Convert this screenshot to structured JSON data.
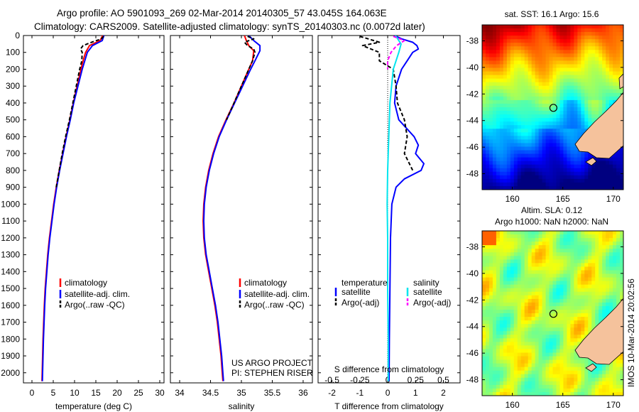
{
  "header": {
    "line1": "Argo profile: AO 5901093_269 02-Mar-2014 20140305_57 43.045S 164.063E",
    "line2": "Climatology: CARS2009. Satellite-adjusted climatology: synTS_20140303.nc (0.0072d later)"
  },
  "colors": {
    "climatology": "#ff0000",
    "satellite": "#0000ff",
    "argo": "#000000",
    "sat_salinity": "#00e5ee",
    "argo_salinity": "#ff00ff",
    "land": "#f5c29c"
  },
  "chart_data": [
    {
      "id": "temperature",
      "type": "line",
      "xlabel": "temperature (deg C)",
      "ylabel": "",
      "xlim": [
        -2,
        31
      ],
      "ylim": [
        2060,
        0
      ],
      "xticks": [
        0,
        5,
        10,
        15,
        20,
        25,
        30
      ],
      "yticks": [
        0,
        100,
        200,
        300,
        400,
        500,
        600,
        700,
        800,
        900,
        1000,
        1100,
        1200,
        1300,
        1400,
        1500,
        1600,
        1700,
        1800,
        1900,
        2000
      ],
      "legend": [
        "climatology",
        "satellite-adj. clim.",
        "Argo(..raw -QC)"
      ],
      "legend_position": "lower-middle",
      "series": [
        {
          "name": "climatology",
          "color": "#ff0000",
          "depth": [
            0,
            30,
            60,
            100,
            150,
            200,
            300,
            400,
            500,
            600,
            700,
            800,
            900,
            1000,
            1100,
            1200,
            1300,
            1400,
            1500,
            1600,
            1700,
            1800,
            1900,
            2000,
            2050
          ],
          "values": [
            16.6,
            16.0,
            13.5,
            12.6,
            12.0,
            11.5,
            10.6,
            9.7,
            8.9,
            8.0,
            7.2,
            6.4,
            5.7,
            5.1,
            4.6,
            4.1,
            3.7,
            3.4,
            3.1,
            2.9,
            2.75,
            2.6,
            2.5,
            2.4,
            2.35
          ]
        },
        {
          "name": "satellite-adj. clim.",
          "color": "#0000ff",
          "depth": [
            0,
            30,
            60,
            100,
            150,
            200,
            300,
            400,
            500,
            600,
            700,
            800,
            900,
            1000,
            1100,
            1200,
            1300,
            1400,
            1500,
            1600,
            1700,
            1800,
            1900,
            2000,
            2050
          ],
          "values": [
            16.9,
            16.5,
            14.2,
            13.0,
            12.4,
            11.8,
            10.8,
            9.8,
            9.0,
            8.1,
            7.3,
            6.5,
            5.8,
            5.2,
            4.7,
            4.2,
            3.8,
            3.5,
            3.2,
            3.0,
            2.85,
            2.7,
            2.6,
            2.5,
            2.45
          ]
        },
        {
          "name": "Argo(..raw -QC)",
          "color": "#000000",
          "depth": [
            5,
            20,
            40,
            60,
            80,
            100,
            150,
            200,
            300,
            400,
            500,
            600,
            700,
            800,
            900
          ],
          "values": [
            16.8,
            16.3,
            14.0,
            12.0,
            11.4,
            11.8,
            11.7,
            11.2,
            10.4,
            9.6,
            8.8,
            7.9,
            7.1,
            6.4,
            5.7
          ]
        }
      ]
    },
    {
      "id": "salinity",
      "type": "line",
      "xlabel": "salinity",
      "ylabel": "",
      "xlim": [
        33.85,
        36.15
      ],
      "ylim": [
        2060,
        0
      ],
      "xticks": [
        34,
        34.5,
        35,
        35.5,
        36
      ],
      "xticklabels": [
        "34",
        "34.5",
        "35",
        "35.5",
        "36"
      ],
      "legend": [
        "climatology",
        "satellite-adj. clim.",
        "Argo(..raw -QC)"
      ],
      "legend_position": "lower-middle",
      "annotation": [
        "US ARGO PROJECT",
        "PI: STEPHEN RISER"
      ],
      "series": [
        {
          "name": "climatology",
          "color": "#ff0000",
          "depth": [
            0,
            30,
            60,
            90,
            150,
            200,
            300,
            400,
            500,
            600,
            700,
            800,
            900,
            1000,
            1100,
            1200,
            1300,
            1400,
            1500,
            1600,
            1700,
            1800,
            1900,
            2000,
            2050
          ],
          "values": [
            35.05,
            35.08,
            35.12,
            35.2,
            35.18,
            35.12,
            35.0,
            34.88,
            34.75,
            34.63,
            34.54,
            34.47,
            34.42,
            34.39,
            34.38,
            34.39,
            34.42,
            34.47,
            34.52,
            34.57,
            34.61,
            34.64,
            34.67,
            34.69,
            34.7
          ]
        },
        {
          "name": "satellite-adj. clim.",
          "color": "#0000ff",
          "depth": [
            0,
            30,
            60,
            90,
            150,
            200,
            300,
            400,
            500,
            600,
            700,
            800,
            900,
            1000,
            1100,
            1200,
            1300,
            1400,
            1500,
            1600,
            1700,
            1800,
            1900,
            2000,
            2050
          ],
          "values": [
            35.12,
            35.2,
            35.3,
            35.3,
            35.22,
            35.15,
            35.02,
            34.89,
            34.76,
            34.64,
            34.55,
            34.48,
            34.43,
            34.4,
            34.39,
            34.4,
            34.43,
            34.48,
            34.53,
            34.58,
            34.62,
            34.65,
            34.68,
            34.7,
            34.71
          ]
        },
        {
          "name": "Argo(..raw -QC)",
          "color": "#000000",
          "depth": [
            5,
            20,
            40,
            60,
            80,
            100,
            150,
            200,
            300,
            400,
            500
          ],
          "values": [
            35.1,
            35.2,
            35.05,
            35.1,
            35.2,
            35.22,
            35.18,
            35.12,
            35.0,
            34.88,
            34.76
          ]
        }
      ]
    },
    {
      "id": "difference",
      "type": "line",
      "xlabel": "T difference from climatology",
      "xlabel2": "S difference from climatology",
      "ylabel": "",
      "xlim": [
        -2.5,
        2.6
      ],
      "ylim": [
        2060,
        0
      ],
      "xticks": [
        -2,
        -1,
        0,
        1,
        2
      ],
      "xticks2": [
        -0.5,
        -0.25,
        0,
        0.25,
        0.5
      ],
      "xticklabels2": [
        "-0.5",
        "-0.25",
        "0",
        "0.25",
        "0.5"
      ],
      "legend": {
        "temperature_header": "temperature",
        "salinity_header": "salinity",
        "temperature_items": [
          "satellite",
          "Argo(-adj)"
        ],
        "salinity_items": [
          "satellite",
          "Argo(-adj)"
        ]
      },
      "legend_position": "lower-middle",
      "series": [
        {
          "name": "T satellite",
          "color": "#0000ff",
          "depth": [
            0,
            20,
            40,
            60,
            80,
            100,
            150,
            200,
            300,
            400,
            500,
            600,
            650,
            700,
            760,
            800,
            850,
            900,
            1000,
            1200,
            1500,
            1800,
            2050
          ],
          "values": [
            0.25,
            0.5,
            0.9,
            1.05,
            1.1,
            0.9,
            0.7,
            0.5,
            0.3,
            0.25,
            0.4,
            0.95,
            1.1,
            1.0,
            1.3,
            1.2,
            0.6,
            0.3,
            0.15,
            0.1,
            0.08,
            0.06,
            0.05
          ]
        },
        {
          "name": "T Argo(-adj)",
          "color": "#000000",
          "depth": [
            5,
            20,
            40,
            60,
            80,
            100,
            150,
            200,
            300,
            400,
            500,
            600,
            700,
            800
          ],
          "values": [
            -1.0,
            -0.7,
            -0.3,
            -0.9,
            -0.6,
            -0.3,
            -0.3,
            0.2,
            0.3,
            0.35,
            0.6,
            0.7,
            0.6,
            0.9
          ]
        },
        {
          "name": "S satellite",
          "color": "#00e5ee",
          "depth": [
            0,
            50,
            100,
            200,
            400,
            600,
            800,
            1000,
            1200,
            1500,
            1800,
            2050
          ],
          "values": [
            0.07,
            0.12,
            0.1,
            0.05,
            0.02,
            0.01,
            0.0,
            -0.005,
            0.0,
            0.0,
            0.005,
            0.005
          ]
        },
        {
          "name": "S Argo(-adj)",
          "color": "#ff00ff",
          "depth": [
            5,
            30,
            60,
            100,
            150,
            200
          ],
          "values": [
            0.05,
            0.15,
            0.08,
            0.03,
            0.0,
            0.0
          ]
        }
      ]
    }
  ],
  "maps": {
    "sst": {
      "title": "sat. SST: 16.1  Argo: 15.6",
      "xticks": [
        "160",
        "165",
        "170"
      ],
      "yticks": [
        "-38",
        "-40",
        "-42",
        "-44",
        "-46",
        "-48"
      ],
      "marker_lon": 164.063,
      "marker_lat": -43.045,
      "lon_range": [
        157,
        171
      ],
      "lat_range": [
        -49.2,
        -36.8
      ]
    },
    "sla": {
      "title_line1": "Altim. SLA: 0.12",
      "title_line2": "Argo h1000: NaN h2000: NaN",
      "xticks": [
        "160",
        "165",
        "170"
      ],
      "yticks": [
        "-38",
        "-40",
        "-42",
        "-44",
        "-46",
        "-48"
      ],
      "marker_lon": 164.063,
      "marker_lat": -43.045,
      "lon_range": [
        157,
        171
      ],
      "lat_range": [
        -49.2,
        -36.8
      ]
    }
  },
  "credit": "IMOS 10-Mar-2014 20:02:56"
}
